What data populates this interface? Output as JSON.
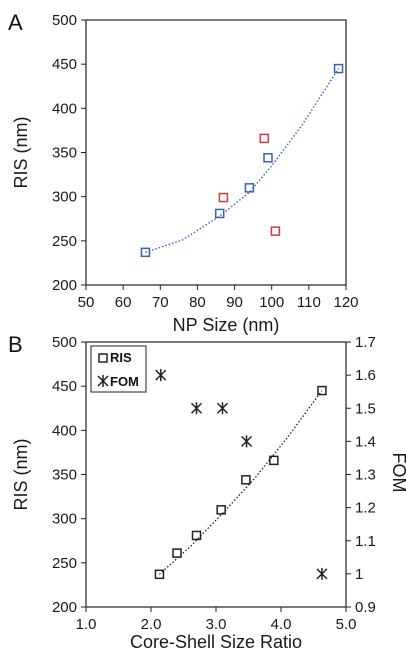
{
  "chart_data": [
    {
      "panel": "A",
      "type": "scatter",
      "xlabel": "NP Size (nm)",
      "ylabel": "RIS (nm)",
      "xlim": [
        50,
        120
      ],
      "ylim": [
        200,
        500
      ],
      "xticks": [
        50,
        60,
        70,
        80,
        90,
        100,
        110,
        120
      ],
      "yticks": [
        200,
        250,
        300,
        350,
        400,
        450,
        500
      ],
      "grid": false,
      "series": [
        {
          "marker": "open-square",
          "color": "#3a5fb8",
          "x": [
            66,
            86,
            94,
            99,
            118
          ],
          "y": [
            237,
            281,
            310,
            344,
            445
          ]
        },
        {
          "marker": "open-square",
          "color": "#d9383a",
          "x": [
            87,
            98,
            101
          ],
          "y": [
            299,
            366,
            261
          ]
        }
      ],
      "trendline": {
        "color": "#3a5fb8",
        "style": "dotted",
        "x": [
          66,
          118
        ],
        "points": [
          [
            66,
            237
          ],
          [
            76,
            251
          ],
          [
            86,
            278
          ],
          [
            94,
            305
          ],
          [
            100,
            335
          ],
          [
            108,
            380
          ],
          [
            118,
            445
          ]
        ]
      }
    },
    {
      "panel": "B",
      "type": "scatter",
      "xlabel": "Core-Shell Size Ratio",
      "ylabel": "RIS (nm)",
      "y2label": "FOM",
      "xlim": [
        1.0,
        5.0
      ],
      "ylim": [
        200,
        500
      ],
      "y2lim": [
        0.9,
        1.7
      ],
      "xticks": [
        "1.0",
        "2.0",
        "3.0",
        "4.0",
        "5.0"
      ],
      "yticks": [
        200,
        250,
        300,
        350,
        400,
        450,
        500
      ],
      "y2ticks": [
        "0.9",
        "1",
        "1.1",
        "1.2",
        "1.3",
        "1.4",
        "1.5",
        "1.6",
        "1.7"
      ],
      "legend": {
        "position": "top-left",
        "entries": [
          "RIS",
          "FOM"
        ]
      },
      "series": [
        {
          "name": "RIS",
          "axis": "left",
          "marker": "open-square",
          "color": "#222222",
          "x": [
            2.13,
            2.4,
            2.7,
            3.08,
            3.46,
            3.89,
            4.63
          ],
          "y": [
            237,
            261,
            281,
            310,
            344,
            366,
            445
          ]
        },
        {
          "name": "FOM",
          "axis": "right",
          "marker": "asterisk",
          "color": "#222222",
          "x": [
            2.15,
            2.7,
            3.1,
            3.47,
            4.63
          ],
          "y": [
            1.6,
            1.5,
            1.5,
            1.4,
            1.0
          ]
        }
      ],
      "trendline": {
        "color": "#222222",
        "style": "dotted",
        "points": [
          [
            2.13,
            237
          ],
          [
            2.6,
            268
          ],
          [
            3.1,
            306
          ],
          [
            3.6,
            346
          ],
          [
            4.1,
            392
          ],
          [
            4.63,
            445
          ]
        ]
      }
    }
  ]
}
